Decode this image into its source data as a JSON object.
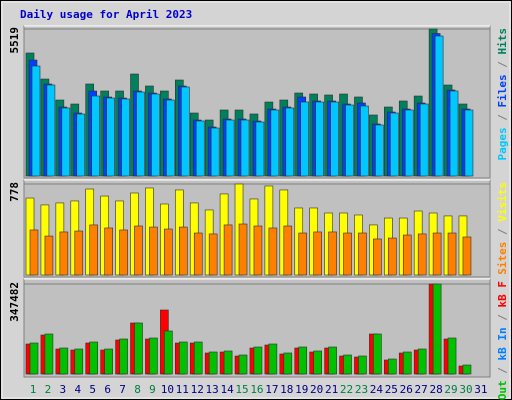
{
  "title": "Daily usage for April 2023",
  "categories": [
    "1",
    "2",
    "3",
    "4",
    "5",
    "6",
    "7",
    "8",
    "9",
    "10",
    "11",
    "12",
    "13",
    "14",
    "15",
    "16",
    "17",
    "18",
    "19",
    "20",
    "21",
    "22",
    "23",
    "24",
    "25",
    "26",
    "27",
    "28",
    "29",
    "30",
    "31"
  ],
  "category_colors": [
    "#008040",
    "#008040",
    "#000080",
    "#000080",
    "#000080",
    "#000080",
    "#000080",
    "#008040",
    "#008040",
    "#000080",
    "#000080",
    "#000080",
    "#000080",
    "#000080",
    "#008040",
    "#008040",
    "#000080",
    "#000080",
    "#000080",
    "#000080",
    "#000080",
    "#008040",
    "#008040",
    "#000080",
    "#000080",
    "#000080",
    "#000080",
    "#000080",
    "#008040",
    "#008040",
    "#000080"
  ],
  "separator": " / ",
  "chart_data": [
    {
      "type": "bar",
      "ylim": [
        0,
        5519
      ],
      "yticks": [
        5519
      ],
      "series": [
        {
          "name": "Hits",
          "color": "#00805c",
          "values": [
            4618,
            3641,
            2853,
            2703,
            3454,
            3191,
            3191,
            3829,
            3379,
            3191,
            3604,
            2365,
            2102,
            2478,
            2478,
            2328,
            2778,
            2853,
            3116,
            3078,
            3041,
            3078,
            2966,
            2290,
            2590,
            2816,
            3003,
            5519,
            3416,
            2703,
            null
          ]
        },
        {
          "name": "Files",
          "color": "#0040ff",
          "values": [
            4354,
            3454,
            2590,
            2365,
            3191,
            2966,
            2928,
            3191,
            3116,
            2891,
            3379,
            2102,
            1840,
            2140,
            2140,
            2065,
            2515,
            2590,
            2966,
            2816,
            2816,
            2703,
            2741,
            1953,
            2403,
            2515,
            2741,
            5350,
            3229,
            2515,
            null
          ]
        },
        {
          "name": "Pages",
          "color": "#00c8ff",
          "values": [
            4129,
            3416,
            2553,
            2327,
            3003,
            2928,
            2891,
            3153,
            3078,
            2853,
            3341,
            2065,
            1802,
            2102,
            2102,
            2027,
            2478,
            2553,
            2778,
            2778,
            2778,
            2665,
            2628,
            1915,
            2365,
            2478,
            2703,
            5256,
            3191,
            2478,
            null
          ]
        }
      ]
    },
    {
      "type": "bar",
      "ylim": [
        0,
        778
      ],
      "yticks": [
        778
      ],
      "series": [
        {
          "name": "Visits",
          "color": "#ffff00",
          "values": [
            658,
            599,
            616,
            633,
            735,
            675,
            633,
            701,
            744,
            607,
            727,
            616,
            556,
            693,
            778,
            650,
            761,
            727,
            573,
            573,
            530,
            530,
            513,
            428,
            487,
            487,
            547,
            530,
            505,
            505,
            null
          ]
        },
        {
          "name": "Sites",
          "color": "#ff8000",
          "values": [
            385,
            333,
            368,
            376,
            428,
            402,
            385,
            419,
            410,
            393,
            410,
            359,
            351,
            428,
            436,
            419,
            402,
            419,
            359,
            368,
            368,
            359,
            359,
            308,
            316,
            342,
            351,
            359,
            359,
            325,
            null
          ]
        }
      ]
    },
    {
      "type": "bar",
      "ylim": [
        0,
        347482
      ],
      "yticks": [
        347482
      ],
      "series": [
        {
          "name": "kB F",
          "color": "#ff0000",
          "values": [
            115830,
            150579,
            96525,
            92664,
            119691,
            92664,
            131274,
            196911,
            135135,
            247104,
            119691,
            119691,
            81081,
            84942,
            69498,
            100386,
            111969,
            77220,
            100386,
            84942,
            100386,
            69498,
            65637,
            154440,
            54054,
            81081,
            92664,
            347482,
            135135,
            30888,
            null
          ]
        },
        {
          "name": "kB In",
          "color": "#0080ff",
          "values": [
            1500,
            1500,
            1500,
            1500,
            1500,
            1500,
            1500,
            1500,
            1500,
            1500,
            1500,
            1500,
            1500,
            1500,
            1500,
            1500,
            1500,
            1500,
            1500,
            1500,
            1500,
            1500,
            1500,
            1500,
            1500,
            1500,
            1500,
            1500,
            1500,
            1500,
            null
          ]
        },
        {
          "name": "kB Out",
          "color": "#00c000",
          "values": [
            119691,
            154440,
            100386,
            96525,
            123552,
            96525,
            135135,
            196911,
            138996,
            166023,
            123552,
            123552,
            84942,
            88803,
            73359,
            104247,
            115830,
            81081,
            104247,
            88803,
            104247,
            73359,
            69498,
            154440,
            57915,
            84942,
            96525,
            347482,
            138996,
            34749,
            null
          ]
        }
      ]
    }
  ]
}
